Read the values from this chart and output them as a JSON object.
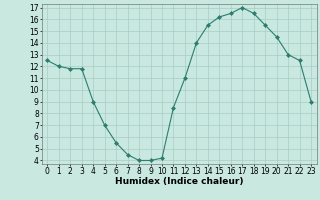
{
  "x": [
    0,
    1,
    2,
    3,
    4,
    5,
    6,
    7,
    8,
    9,
    10,
    11,
    12,
    13,
    14,
    15,
    16,
    17,
    18,
    19,
    20,
    21,
    22,
    23
  ],
  "y": [
    12.5,
    12.0,
    11.8,
    11.8,
    9.0,
    7.0,
    5.5,
    4.5,
    4.0,
    4.0,
    4.2,
    8.5,
    11.0,
    14.0,
    15.5,
    16.2,
    16.5,
    17.0,
    16.5,
    15.5,
    14.5,
    13.0,
    12.5,
    9.0
  ],
  "line_color": "#2d7d6e",
  "marker_color": "#2d7d6e",
  "bg_color": "#c8e8e0",
  "grid_color": "#a8ccc4",
  "xlabel": "Humidex (Indice chaleur)",
  "ylim": [
    4,
    17
  ],
  "xlim": [
    -0.5,
    23.5
  ],
  "yticks": [
    4,
    5,
    6,
    7,
    8,
    9,
    10,
    11,
    12,
    13,
    14,
    15,
    16,
    17
  ],
  "xticks": [
    0,
    1,
    2,
    3,
    4,
    5,
    6,
    7,
    8,
    9,
    10,
    11,
    12,
    13,
    14,
    15,
    16,
    17,
    18,
    19,
    20,
    21,
    22,
    23
  ],
  "label_fontsize": 6.5,
  "tick_fontsize": 5.5
}
